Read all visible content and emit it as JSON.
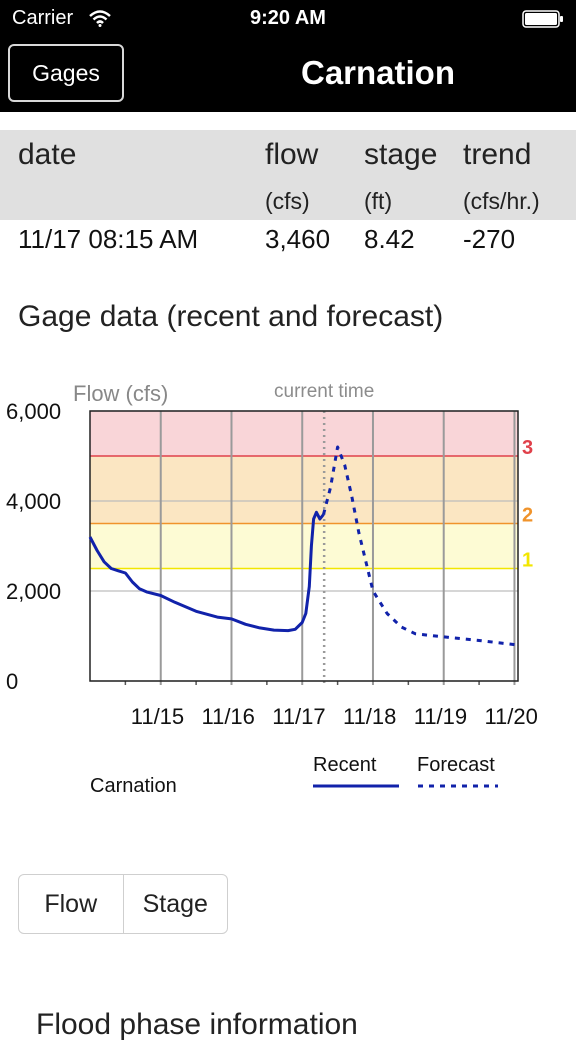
{
  "status_bar": {
    "carrier": "Carrier",
    "time": "9:20 AM",
    "wifi_icon": "wifi-icon",
    "battery_icon": "battery-icon"
  },
  "nav": {
    "back_label": "Gages",
    "title": "Carnation"
  },
  "table": {
    "headers": {
      "date": "date",
      "flow": "flow",
      "stage": "stage",
      "trend": "trend"
    },
    "units": {
      "flow": "(cfs)",
      "stage": "(ft)",
      "trend": "(cfs/hr.)"
    },
    "row": {
      "date": "11/17 08:15 AM",
      "flow": "3,460",
      "stage": "8.42",
      "trend": "-270"
    }
  },
  "section_title": "Gage data (recent and forecast)",
  "chart_data": {
    "type": "line",
    "ylabel": "Flow (cfs)",
    "current_time_label": "current time",
    "ylim": [
      0,
      6000
    ],
    "yticks": [
      0,
      2000,
      4000,
      6000
    ],
    "ytick_labels": [
      "0",
      "2,000",
      "4,000",
      "6,000"
    ],
    "xtick_labels": [
      "11/15",
      "11/16",
      "11/17",
      "11/18",
      "11/19",
      "11/20"
    ],
    "xlim_days": [
      14.0,
      20.05
    ],
    "current_time_day": 17.31,
    "flood_levels": [
      {
        "label": "1",
        "value": 2500,
        "color": "#f2e600"
      },
      {
        "label": "2",
        "value": 3500,
        "color": "#f0932b"
      },
      {
        "label": "3",
        "value": 5000,
        "color": "#e0404a"
      }
    ],
    "bands": [
      {
        "from": 2500,
        "to": 3500,
        "color": "#fdfbd4"
      },
      {
        "from": 3500,
        "to": 5000,
        "color": "#fbe6c2"
      },
      {
        "from": 5000,
        "to": 6000,
        "color": "#f9d5d8"
      }
    ],
    "station_label": "Carnation",
    "series": [
      {
        "name": "Recent",
        "style": "solid",
        "color": "#1122aa",
        "x": [
          14.0,
          14.1,
          14.2,
          14.3,
          14.4,
          14.5,
          14.6,
          14.7,
          14.8,
          15.0,
          15.2,
          15.5,
          15.8,
          16.0,
          16.2,
          16.4,
          16.6,
          16.8,
          16.9,
          17.0,
          17.05,
          17.1,
          17.13,
          17.16,
          17.2,
          17.25,
          17.3
        ],
        "y": [
          3200,
          2900,
          2650,
          2500,
          2450,
          2400,
          2200,
          2050,
          1980,
          1900,
          1750,
          1550,
          1420,
          1380,
          1260,
          1180,
          1130,
          1120,
          1150,
          1300,
          1500,
          2100,
          3000,
          3600,
          3750,
          3600,
          3700
        ]
      },
      {
        "name": "Forecast",
        "style": "dotted",
        "color": "#1122aa",
        "x": [
          17.3,
          17.4,
          17.5,
          17.6,
          17.7,
          17.8,
          18.0,
          18.2,
          18.4,
          18.6,
          19.0,
          19.5,
          20.05
        ],
        "y": [
          3700,
          4300,
          5200,
          4800,
          4100,
          3300,
          2000,
          1500,
          1200,
          1050,
          980,
          900,
          800
        ]
      }
    ]
  }
}
